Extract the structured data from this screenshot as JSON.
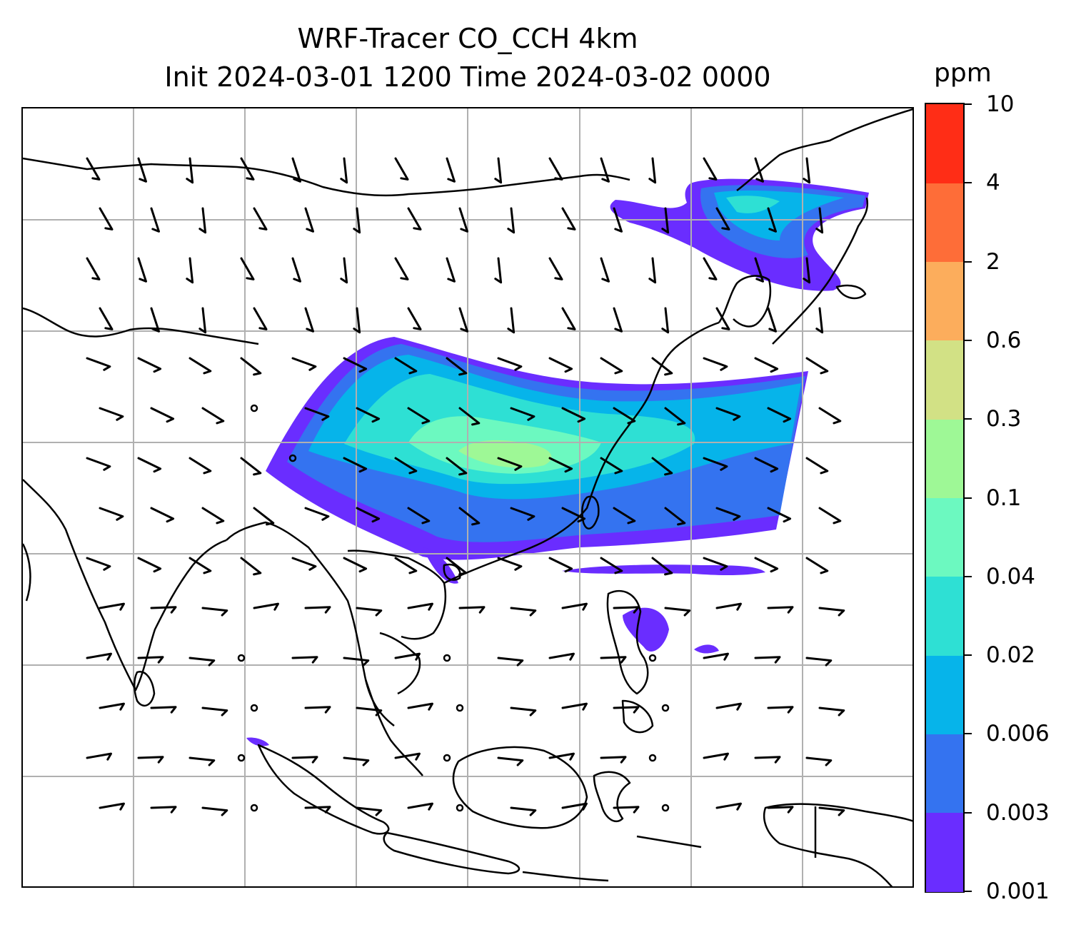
{
  "title": {
    "line1": "WRF-Tracer CO_CCH 4km",
    "line2": "Init 2024-03-01 1200 Time 2024-03-02 0000"
  },
  "colorbar": {
    "unit": "ppm",
    "levels": [
      "0.001",
      "0.003",
      "0.006",
      "0.02",
      "0.04",
      "0.1",
      "0.3",
      "0.6",
      "2",
      "4",
      "10"
    ],
    "colors": [
      "#6a2dff",
      "#3473f0",
      "#06b4ea",
      "#2ee0d4",
      "#6cf9c0",
      "#9ef896",
      "#d2e185",
      "#fcad5c",
      "#fe6d38",
      "#ff2d16"
    ]
  },
  "map": {
    "tracer": "CO_CCH",
    "gridline_color": "#b0b0b0",
    "coastline_color": "#000000",
    "wind_barb_color": "#000000",
    "plume_colors": {
      "outer": "#6a2dff",
      "low": "#3473f0",
      "mid": "#06b4ea",
      "high": "#2ee0d4",
      "core": "#6cf9c0",
      "peak": "#9ef896"
    }
  }
}
